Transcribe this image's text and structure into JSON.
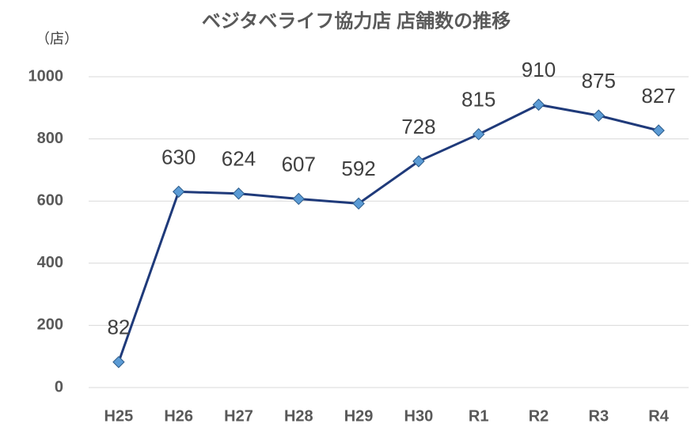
{
  "chart_data": {
    "type": "line",
    "title": "ベジタベライフ協力店 店舗数の推移",
    "y_axis_label": "（店）",
    "categories": [
      "H25",
      "H26",
      "H27",
      "H28",
      "H29",
      "H30",
      "R1",
      "R2",
      "R3",
      "R4"
    ],
    "values": [
      82,
      630,
      624,
      607,
      592,
      728,
      815,
      910,
      875,
      827
    ],
    "color": "#1f3a7a",
    "marker_color": "#5b9bd5",
    "ylim": [
      0,
      1000
    ],
    "yticks": [
      0,
      200,
      400,
      600,
      800,
      1000
    ],
    "grid": true
  }
}
